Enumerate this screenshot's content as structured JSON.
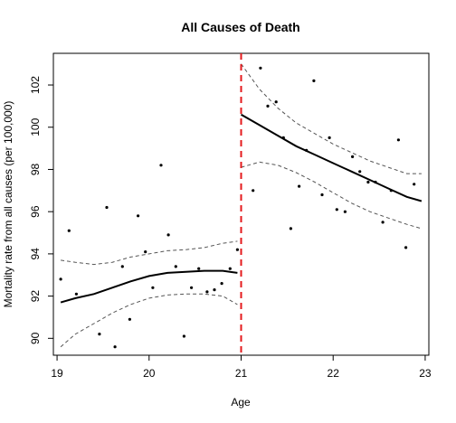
{
  "chart_data": {
    "type": "scatter",
    "title": "All Causes of Death",
    "xlabel": "Age",
    "ylabel": "Mortality rate from all causes (per 100,000)",
    "xlim": [
      18.96,
      23.04
    ],
    "ylim": [
      89.2,
      103.5
    ],
    "xticks": [
      19,
      20,
      21,
      22,
      23
    ],
    "yticks": [
      90,
      92,
      94,
      96,
      98,
      100,
      102
    ],
    "cutoff": 21,
    "grid": false,
    "colors": {
      "points": "#000000",
      "fit": "#000000",
      "ci": "#555555",
      "cutoff": "#e41a1c"
    },
    "points": [
      {
        "x": 19.04,
        "y": 92.8
      },
      {
        "x": 19.13,
        "y": 95.1
      },
      {
        "x": 19.21,
        "y": 92.1
      },
      {
        "x": 19.46,
        "y": 90.2
      },
      {
        "x": 19.54,
        "y": 96.2
      },
      {
        "x": 19.63,
        "y": 89.6
      },
      {
        "x": 19.71,
        "y": 93.4
      },
      {
        "x": 19.79,
        "y": 90.9
      },
      {
        "x": 19.88,
        "y": 95.8
      },
      {
        "x": 19.96,
        "y": 94.1
      },
      {
        "x": 20.04,
        "y": 92.4
      },
      {
        "x": 20.13,
        "y": 98.2
      },
      {
        "x": 20.21,
        "y": 94.9
      },
      {
        "x": 20.29,
        "y": 93.4
      },
      {
        "x": 20.38,
        "y": 90.1
      },
      {
        "x": 20.46,
        "y": 92.4
      },
      {
        "x": 20.54,
        "y": 93.3
      },
      {
        "x": 20.63,
        "y": 92.2
      },
      {
        "x": 20.71,
        "y": 92.3
      },
      {
        "x": 20.79,
        "y": 92.6
      },
      {
        "x": 20.88,
        "y": 93.3
      },
      {
        "x": 20.96,
        "y": 94.2
      },
      {
        "x": 21.13,
        "y": 97.0
      },
      {
        "x": 21.21,
        "y": 102.8
      },
      {
        "x": 21.29,
        "y": 101.0
      },
      {
        "x": 21.38,
        "y": 101.2
      },
      {
        "x": 21.46,
        "y": 99.5
      },
      {
        "x": 21.54,
        "y": 95.2
      },
      {
        "x": 21.63,
        "y": 97.2
      },
      {
        "x": 21.71,
        "y": 98.9
      },
      {
        "x": 21.79,
        "y": 102.2
      },
      {
        "x": 21.88,
        "y": 96.8
      },
      {
        "x": 21.96,
        "y": 99.5
      },
      {
        "x": 22.04,
        "y": 96.1
      },
      {
        "x": 22.13,
        "y": 96.0
      },
      {
        "x": 22.21,
        "y": 98.6
      },
      {
        "x": 22.29,
        "y": 97.9
      },
      {
        "x": 22.38,
        "y": 97.4
      },
      {
        "x": 22.46,
        "y": 97.4
      },
      {
        "x": 22.54,
        "y": 95.5
      },
      {
        "x": 22.63,
        "y": 97.0
      },
      {
        "x": 22.71,
        "y": 99.4
      },
      {
        "x": 22.79,
        "y": 94.3
      },
      {
        "x": 22.88,
        "y": 97.3
      }
    ],
    "series": [
      {
        "segment": "below-21",
        "fit": {
          "x": [
            19.04,
            19.2,
            19.4,
            19.6,
            19.8,
            20.0,
            20.2,
            20.4,
            20.6,
            20.8,
            20.96
          ],
          "y": [
            91.7,
            91.9,
            92.1,
            92.4,
            92.7,
            92.95,
            93.1,
            93.15,
            93.2,
            93.2,
            93.1
          ]
        },
        "lower": {
          "x": [
            19.04,
            19.2,
            19.4,
            19.6,
            19.8,
            20.0,
            20.2,
            20.4,
            20.6,
            20.8,
            20.96
          ],
          "y": [
            89.6,
            90.2,
            90.7,
            91.2,
            91.6,
            91.9,
            92.05,
            92.1,
            92.1,
            92.0,
            91.6
          ]
        },
        "upper": {
          "x": [
            19.04,
            19.2,
            19.4,
            19.6,
            19.8,
            20.0,
            20.2,
            20.4,
            20.6,
            20.8,
            20.96
          ],
          "y": [
            93.7,
            93.6,
            93.5,
            93.6,
            93.85,
            94.0,
            94.15,
            94.2,
            94.3,
            94.5,
            94.6
          ]
        }
      },
      {
        "segment": "21-and-above",
        "fit": {
          "x": [
            21.0,
            21.2,
            21.4,
            21.6,
            21.8,
            22.0,
            22.2,
            22.4,
            22.6,
            22.8,
            22.96
          ],
          "y": [
            100.6,
            100.1,
            99.6,
            99.1,
            98.7,
            98.3,
            97.9,
            97.5,
            97.1,
            96.7,
            96.5
          ]
        },
        "lower": {
          "x": [
            21.0,
            21.2,
            21.4,
            21.6,
            21.8,
            22.0,
            22.2,
            22.4,
            22.6,
            22.8,
            22.96
          ],
          "y": [
            98.1,
            98.35,
            98.2,
            97.85,
            97.4,
            96.9,
            96.4,
            96.0,
            95.7,
            95.4,
            95.2
          ]
        },
        "upper": {
          "x": [
            21.0,
            21.2,
            21.4,
            21.6,
            21.8,
            22.0,
            22.2,
            22.4,
            22.6,
            22.8,
            22.96
          ],
          "y": [
            103.0,
            101.8,
            100.9,
            100.2,
            99.7,
            99.2,
            98.8,
            98.4,
            98.1,
            97.8,
            97.8
          ]
        }
      }
    ]
  }
}
